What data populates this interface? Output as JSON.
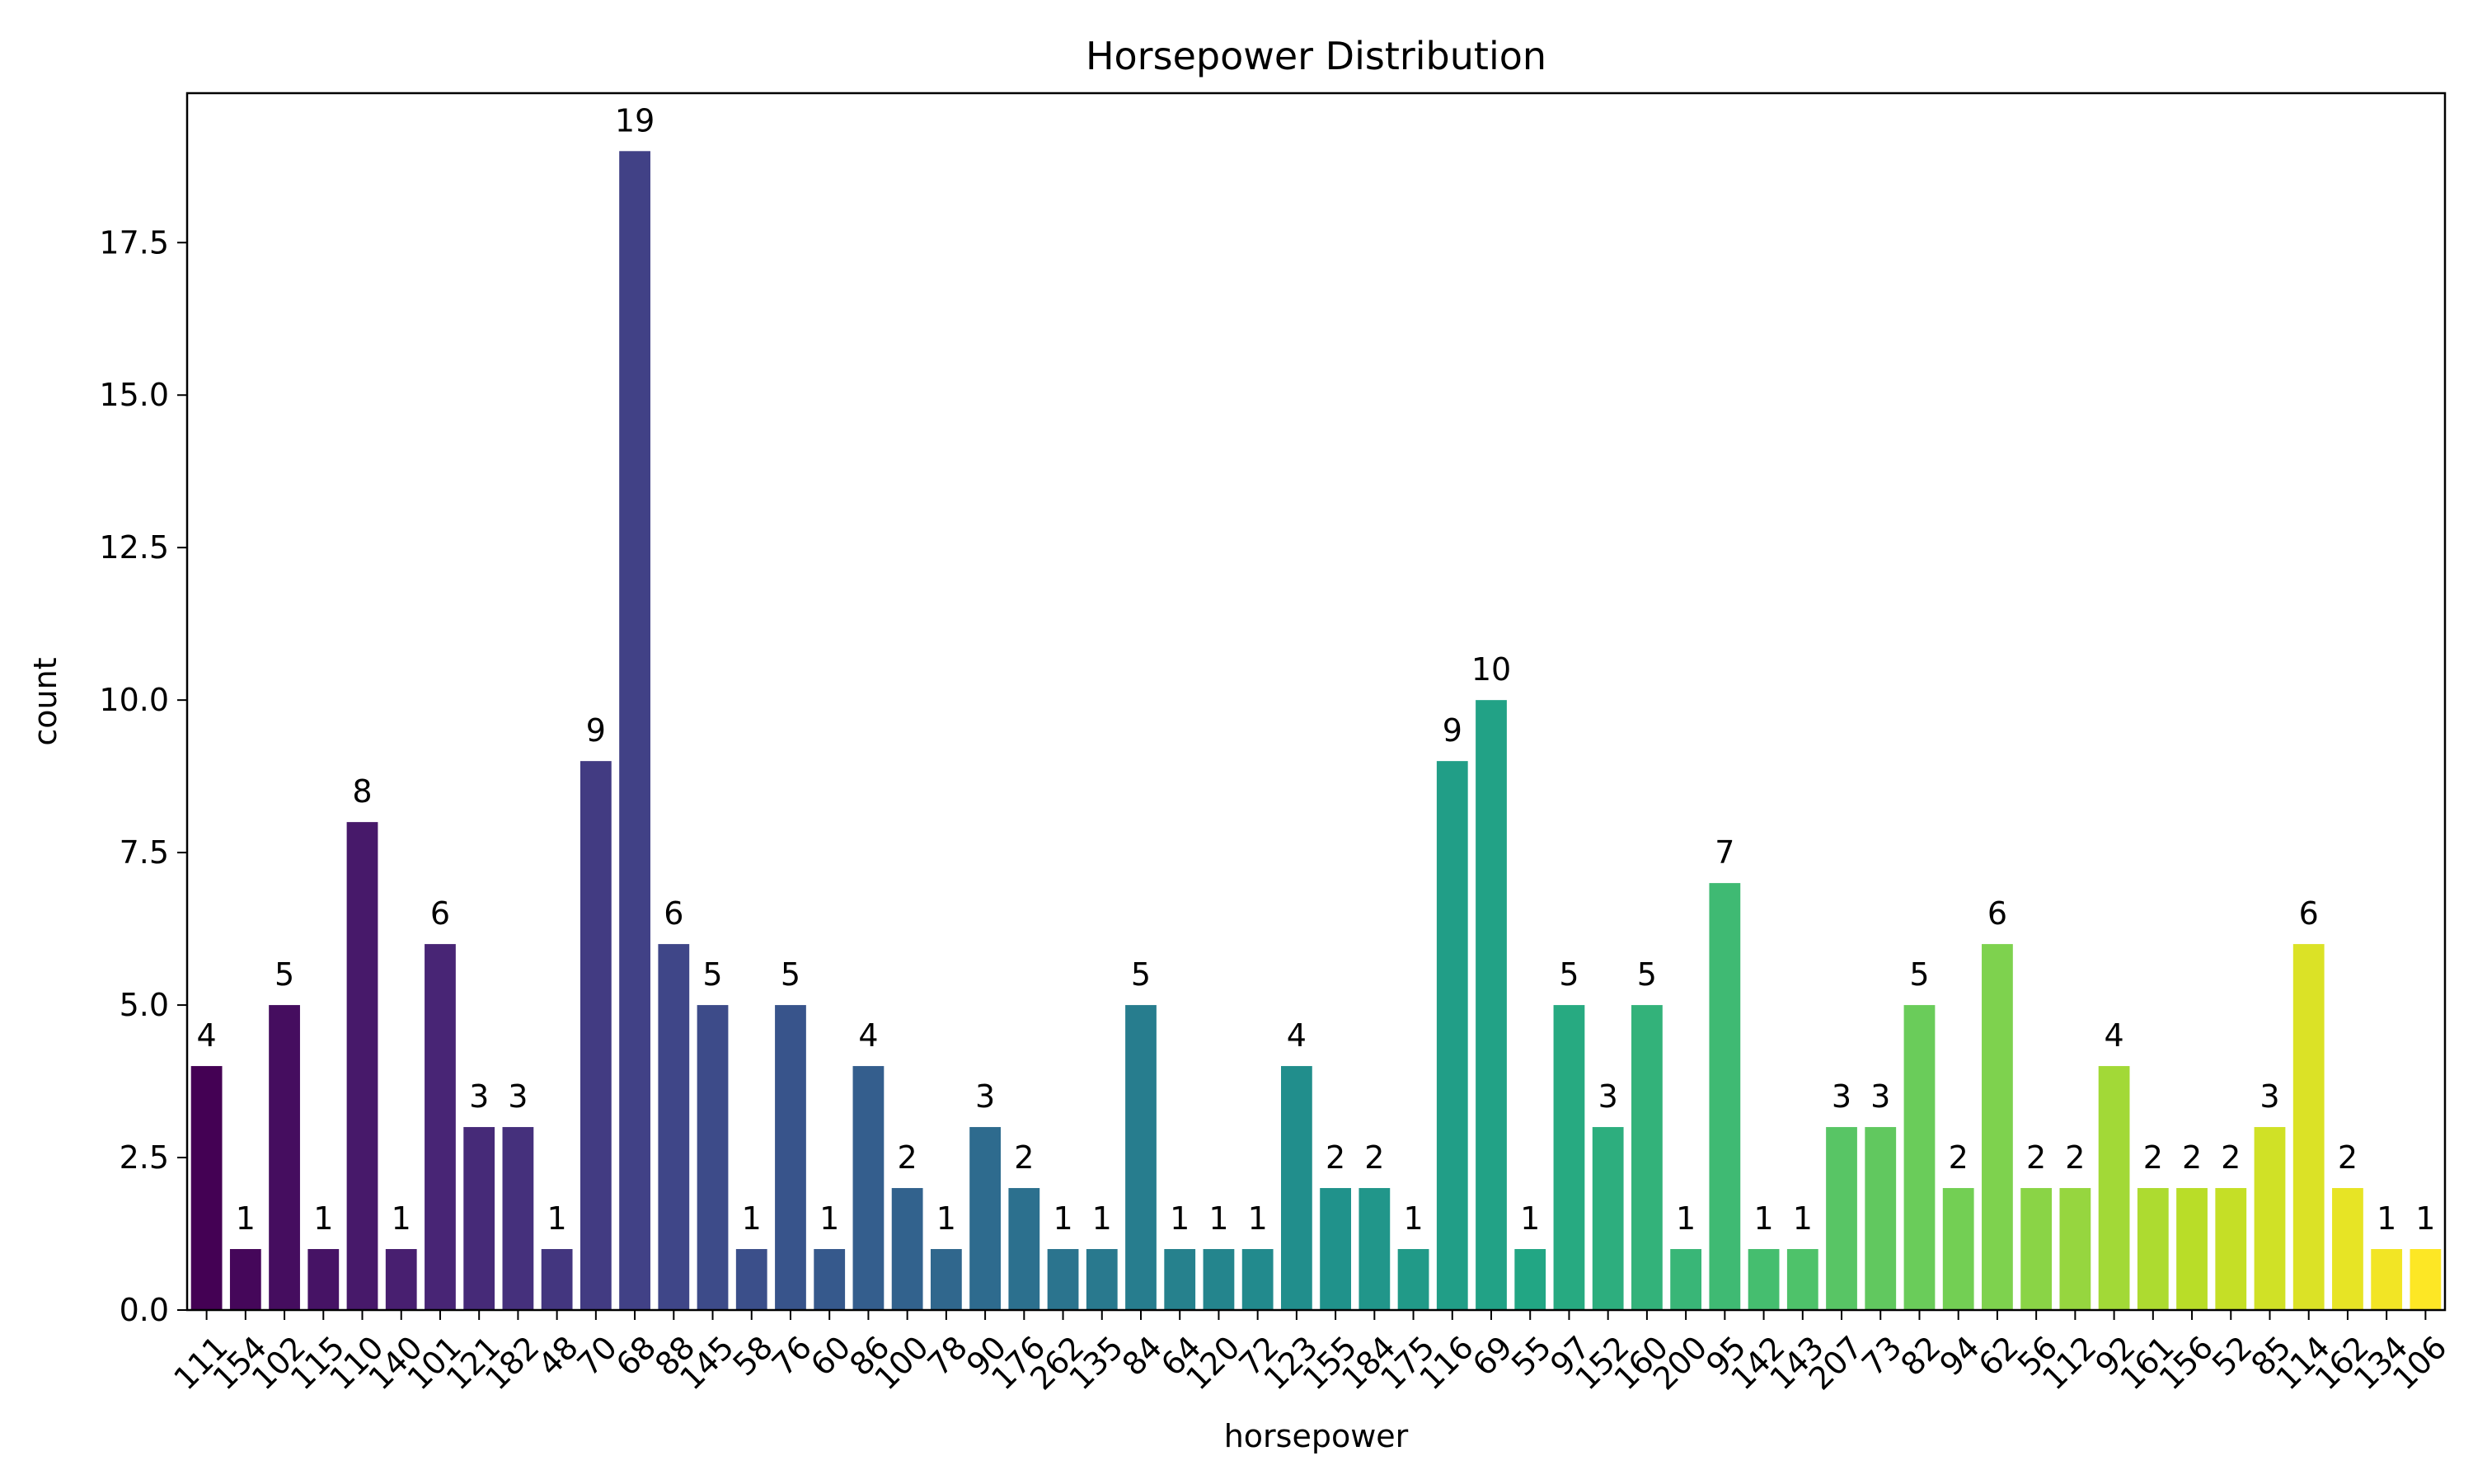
{
  "chart_data": {
    "type": "bar",
    "title": "Horsepower Distribution",
    "xlabel": "horsepower",
    "ylabel": "count",
    "ylim": [
      0,
      20
    ],
    "yticks": [
      "0.0",
      "2.5",
      "5.0",
      "7.5",
      "10.0",
      "12.5",
      "15.0",
      "17.5"
    ],
    "ytick_values": [
      0,
      2.5,
      5,
      7.5,
      10,
      12.5,
      15,
      17.5
    ],
    "grid": false,
    "palette": "viridis",
    "categories": [
      "111",
      "154",
      "102",
      "115",
      "110",
      "140",
      "101",
      "121",
      "182",
      "48",
      "70",
      "68",
      "88",
      "145",
      "58",
      "76",
      "60",
      "86",
      "100",
      "78",
      "90",
      "176",
      "262",
      "135",
      "84",
      "64",
      "120",
      "72",
      "123",
      "155",
      "184",
      "175",
      "116",
      "69",
      "55",
      "97",
      "152",
      "160",
      "200",
      "95",
      "142",
      "143",
      "207",
      "73",
      "82",
      "94",
      "62",
      "56",
      "112",
      "92",
      "161",
      "156",
      "52",
      "85",
      "114",
      "162",
      "134",
      "106"
    ],
    "values": [
      4,
      1,
      5,
      1,
      8,
      1,
      6,
      3,
      3,
      1,
      9,
      19,
      6,
      5,
      1,
      5,
      1,
      4,
      2,
      1,
      3,
      2,
      1,
      1,
      5,
      1,
      1,
      1,
      4,
      2,
      2,
      1,
      9,
      10,
      1,
      5,
      3,
      5,
      1,
      7,
      1,
      1,
      3,
      3,
      5,
      2,
      6,
      2,
      2,
      4,
      2,
      2,
      2,
      3,
      6,
      2,
      1,
      1
    ],
    "value_labels": [
      "4",
      "1",
      "5",
      "1",
      "8",
      "1",
      "6",
      "3",
      "3",
      "1",
      "9",
      "19",
      "6",
      "5",
      "1",
      "5",
      "1",
      "4",
      "2",
      "1",
      "3",
      "2",
      "1",
      "1",
      "5",
      "1",
      "1",
      "1",
      "4",
      "2",
      "2",
      "1",
      "9",
      "10",
      "1",
      "5",
      "3",
      "5",
      "1",
      "7",
      "1",
      "1",
      "3",
      "3",
      "5",
      "2",
      "6",
      "2",
      "2",
      "4",
      "2",
      "2",
      "2",
      "3",
      "6",
      "2",
      "1",
      "1"
    ]
  }
}
